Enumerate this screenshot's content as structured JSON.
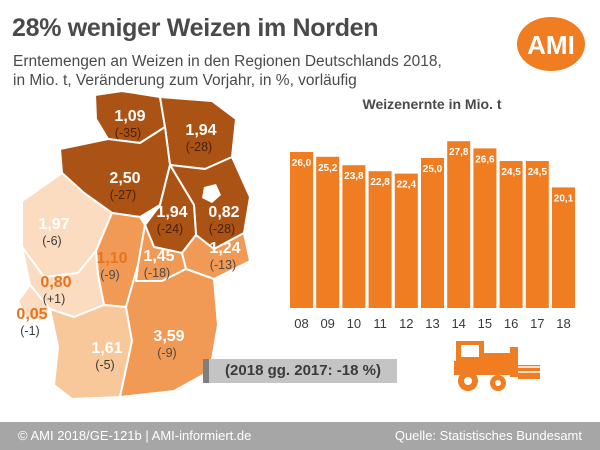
{
  "header": {
    "title": "28% weniger Weizen im Norden",
    "subtitle": "Erntemengen an Weizen in den Regionen Deutschlands 2018, in Mio. t, Veränderung zum Vorjahr, in %, vorläufig",
    "logo_text": "AMI"
  },
  "map": {
    "colors": {
      "dark": "#ab5215",
      "mid": "#f09a56",
      "light": "#f8c79a",
      "lighter": "#fbdcc0",
      "border": "#ffffff"
    },
    "regions": [
      {
        "id": "schleswig-holstein",
        "value": "1,09",
        "change": "(-35)",
        "tone": "dark"
      },
      {
        "id": "mecklenburg-vorpommern",
        "value": "1,94",
        "change": "(-28)",
        "tone": "dark"
      },
      {
        "id": "niedersachsen",
        "value": "2,50",
        "change": "(-27)",
        "tone": "dark"
      },
      {
        "id": "sachsen-anhalt",
        "value": "1,94",
        "change": "(-24)",
        "tone": "dark"
      },
      {
        "id": "brandenburg",
        "value": "0,82",
        "change": "(-28)",
        "tone": "dark"
      },
      {
        "id": "nordrhein-westfalen",
        "value": "1,97",
        "change": "(-6)",
        "tone": "lighter"
      },
      {
        "id": "hessen",
        "value": "1,10",
        "change": "(-9)",
        "tone": "mid"
      },
      {
        "id": "thueringen",
        "value": "1,45",
        "change": "(-18)",
        "tone": "mid"
      },
      {
        "id": "sachsen",
        "value": "1,24",
        "change": "(-13)",
        "tone": "mid"
      },
      {
        "id": "rheinland-pfalz",
        "value": "0,80",
        "change": "(+1)",
        "tone": "lighter"
      },
      {
        "id": "saarland",
        "value": "0,05",
        "change": "(-1)",
        "tone": "lighter"
      },
      {
        "id": "baden-wuerttemberg",
        "value": "1,61",
        "change": "(-5)",
        "tone": "light"
      },
      {
        "id": "bayern",
        "value": "3,59",
        "change": "(-9)",
        "tone": "mid"
      }
    ]
  },
  "summary_text": "(2018 gg. 2017: -18 %)",
  "chart_data": {
    "type": "bar",
    "title": "Weizenernte in Mio. t",
    "categories": [
      "08",
      "09",
      "10",
      "11",
      "12",
      "13",
      "14",
      "15",
      "16",
      "17",
      "18"
    ],
    "values": [
      26.0,
      25.2,
      23.8,
      22.8,
      22.4,
      25.0,
      27.8,
      26.6,
      24.5,
      24.5,
      20.1
    ],
    "value_labels": [
      "26,0",
      "25,2",
      "23,8",
      "22,8",
      "22,4",
      "25,0",
      "27,8",
      "26,6",
      "24,5",
      "24,5",
      "20,1"
    ],
    "xlabel": "",
    "ylabel": "",
    "ylim": [
      0,
      30
    ],
    "grid": false,
    "bar_color": "#f07d22"
  },
  "footer": {
    "left": "© AMI 2018/GE-121b | AMI-informiert.de",
    "right": "Quelle: Statistisches Bundesamt"
  },
  "icons": {
    "logo": "ami-logo",
    "harvester": "combine-harvester-icon"
  }
}
